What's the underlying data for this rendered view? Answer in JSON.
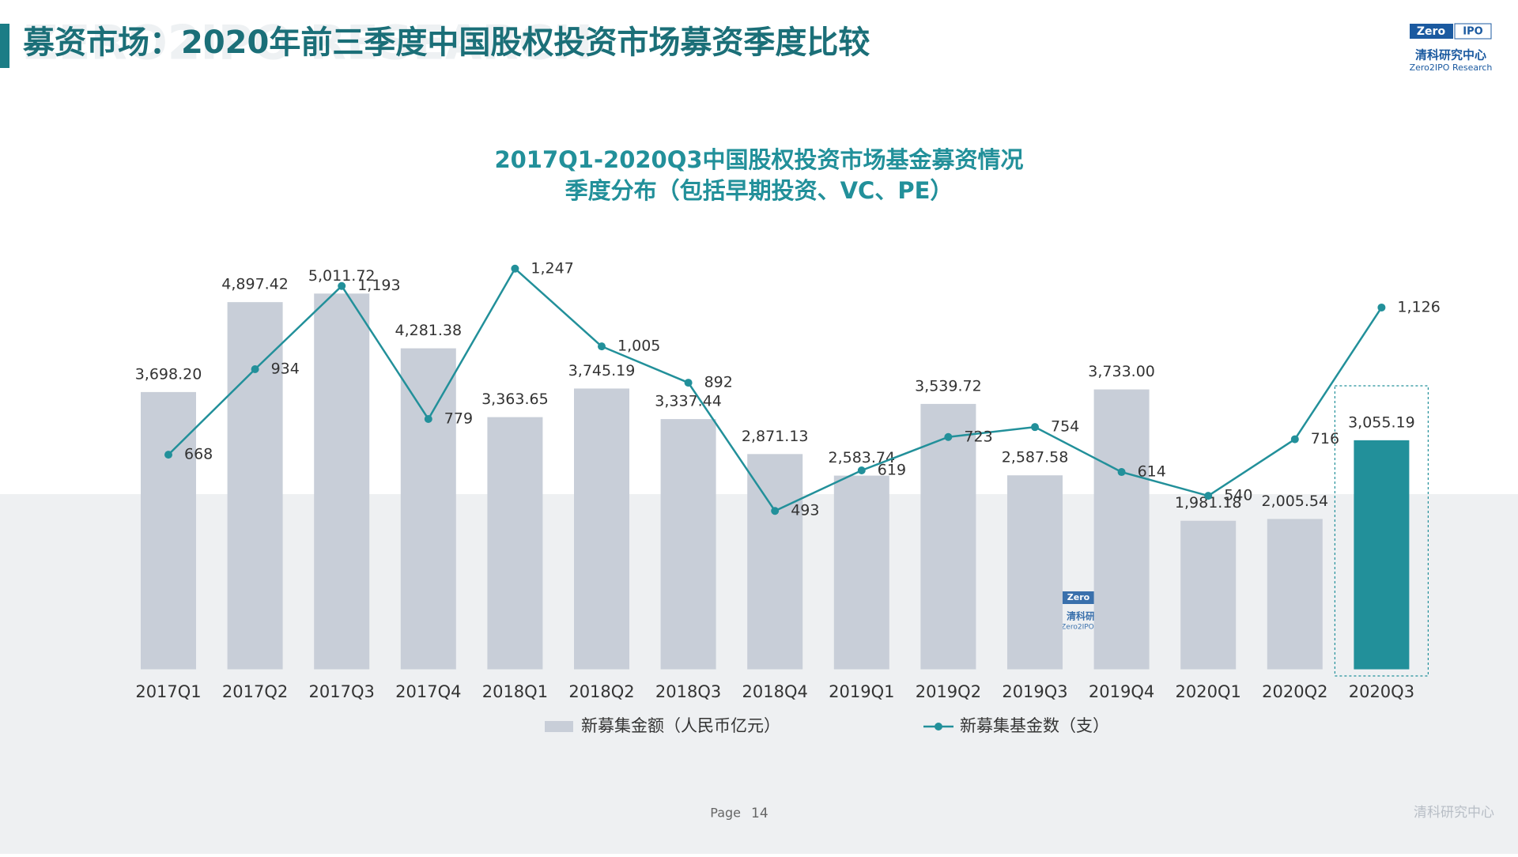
{
  "page": {
    "title": "募资市场：2020年前三季度中国股权投资市场募资季度比较",
    "watermark": "ZERO2IPO RESEARCH",
    "logo": {
      "left": "Zero",
      "right": "IPO",
      "name": "清科研究中心",
      "sub": "Zero2IPO Research"
    },
    "footer": {
      "page_label": "Page",
      "page_number": "14",
      "brand": "清科研究中心"
    }
  },
  "chart_data": {
    "type": "bar",
    "title": "2017Q1-2020Q3中国股权投资市场基金募资情况",
    "subtitle": "季度分布（包括早期投资、VC、PE）",
    "categories": [
      "2017Q1",
      "2017Q2",
      "2017Q3",
      "2017Q4",
      "2018Q1",
      "2018Q2",
      "2018Q3",
      "2018Q4",
      "2019Q1",
      "2019Q2",
      "2019Q3",
      "2019Q4",
      "2020Q1",
      "2020Q2",
      "2020Q3"
    ],
    "ylim": [
      0,
      6000
    ],
    "y2lim": [
      0,
      1400
    ],
    "series": [
      {
        "name": "新募集金额（人民币亿元）",
        "type": "bar",
        "color": "#c8ced8",
        "colors": [
          "#c8ced8",
          "#c8ced8",
          "#c8ced8",
          "#c8ced8",
          "#c8ced8",
          "#c8ced8",
          "#c8ced8",
          "#c8ced8",
          "#c8ced8",
          "#c8ced8",
          "#c8ced8",
          "#c8ced8",
          "#c8ced8",
          "#c8ced8",
          "#22909a"
        ],
        "values": [
          3698.2,
          4897.42,
          5011.72,
          4281.38,
          3363.65,
          3745.19,
          3337.44,
          2871.13,
          2583.74,
          3539.72,
          2587.58,
          3733.0,
          1981.18,
          2005.54,
          3055.19
        ],
        "value_labels": [
          "3,698.20",
          "4,897.42",
          "5,011.72",
          "4,281.38",
          "3,363.65",
          "3,745.19",
          "3,337.44",
          "2,871.13",
          "2,583.74",
          "3,539.72",
          "2,587.58",
          "3,733.00",
          "1,981.18",
          "2,005.54",
          "3,055.19"
        ]
      },
      {
        "name": "新募集基金数（支）",
        "type": "line",
        "axis": "y2",
        "color": "#22909a",
        "values": [
          668,
          934,
          1193,
          779,
          1247,
          1005,
          892,
          493,
          619,
          723,
          754,
          614,
          540,
          716,
          1126
        ],
        "value_labels": [
          "668",
          "934",
          "1,193",
          "779",
          "1,247",
          "1,005",
          "892",
          "493",
          "619",
          "723",
          "754",
          "614",
          "540",
          "716",
          "1,126"
        ]
      }
    ]
  }
}
